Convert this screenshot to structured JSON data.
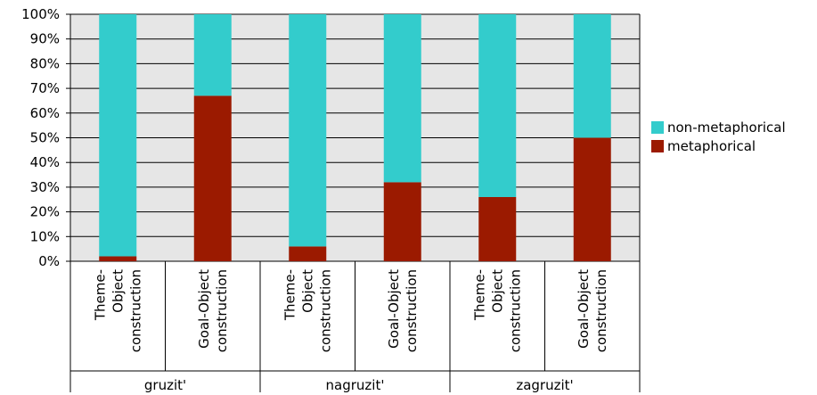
{
  "chart_data": {
    "type": "bar",
    "stacked": true,
    "percent": true,
    "title": "",
    "xlabel": "",
    "ylabel": "",
    "ylim": [
      0,
      100
    ],
    "yticks": [
      "0%",
      "10%",
      "20%",
      "30%",
      "40%",
      "50%",
      "60%",
      "70%",
      "80%",
      "90%",
      "100%"
    ],
    "grid": true,
    "legend_position": "right",
    "groups": [
      {
        "label": "gruzit'",
        "categories": [
          "Theme-Object construction",
          "Goal-Object construction"
        ]
      },
      {
        "label": "nagruzit'",
        "categories": [
          "Theme-Object construction",
          "Goal-Object construction"
        ]
      },
      {
        "label": "zagruzit'",
        "categories": [
          "Theme-Object construction",
          "Goal-Object construction"
        ]
      }
    ],
    "category_label_lines": {
      "Theme-Object construction": [
        "Theme-",
        "Object",
        "construction"
      ],
      "Goal-Object construction": [
        "Goal-Object",
        "construction"
      ]
    },
    "series": [
      {
        "name": "metaphorical",
        "color": "#9b1a00",
        "values": [
          2,
          67,
          6,
          32,
          26,
          50
        ]
      },
      {
        "name": "non-metaphorical",
        "color": "#33cccc",
        "values": [
          98,
          33,
          94,
          68,
          74,
          50
        ]
      }
    ],
    "legend": [
      {
        "name": "non-metaphorical",
        "color": "#33cccc"
      },
      {
        "name": "metaphorical",
        "color": "#9b1a00"
      }
    ]
  }
}
